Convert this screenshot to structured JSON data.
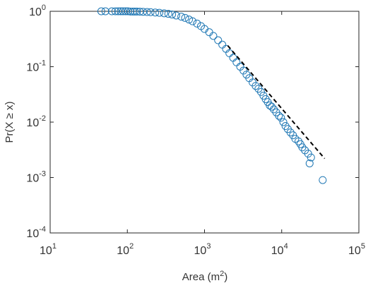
{
  "chart_data": {
    "type": "scatter",
    "xlabel": "Area (m",
    "xlabel_sup": "2",
    "xlabel_end": ")",
    "ylabel": "Pr(X ≥ x)",
    "xscale": "log",
    "yscale": "log",
    "xlim": [
      10,
      100000
    ],
    "ylim": [
      0.0001,
      1
    ],
    "grid": false,
    "x_ticks": [
      {
        "base": "10",
        "exp": "1",
        "value": 10
      },
      {
        "base": "10",
        "exp": "2",
        "value": 100
      },
      {
        "base": "10",
        "exp": "3",
        "value": 1000
      },
      {
        "base": "10",
        "exp": "4",
        "value": 10000
      },
      {
        "base": "10",
        "exp": "5",
        "value": 100000
      }
    ],
    "y_ticks": [
      {
        "base": "10",
        "exp": "0",
        "value": 1
      },
      {
        "base": "10",
        "exp": "-1",
        "value": 0.1
      },
      {
        "base": "10",
        "exp": "-2",
        "value": 0.01
      },
      {
        "base": "10",
        "exp": "-3",
        "value": 0.001
      },
      {
        "base": "10",
        "exp": "-4",
        "value": 0.0001
      }
    ],
    "colors": {
      "marker": "#1f77b4",
      "fit_line": "#000000",
      "axis": "#262626"
    },
    "series": [
      {
        "type": "scatter",
        "marker": "open-circle",
        "points": [
          [
            46,
            1.0
          ],
          [
            52,
            1.0
          ],
          [
            63,
            1.0
          ],
          [
            70,
            1.0
          ],
          [
            76,
            1.0
          ],
          [
            82,
            1.0
          ],
          [
            88,
            1.0
          ],
          [
            95,
            1.0
          ],
          [
            102,
            1.0
          ],
          [
            110,
            0.99
          ],
          [
            118,
            0.99
          ],
          [
            125,
            0.99
          ],
          [
            133,
            0.99
          ],
          [
            145,
            0.985
          ],
          [
            160,
            0.98
          ],
          [
            180,
            0.97
          ],
          [
            200,
            0.965
          ],
          [
            230,
            0.95
          ],
          [
            260,
            0.94
          ],
          [
            300,
            0.92
          ],
          [
            340,
            0.9
          ],
          [
            380,
            0.875
          ],
          [
            430,
            0.84
          ],
          [
            500,
            0.8
          ],
          [
            560,
            0.76
          ],
          [
            630,
            0.71
          ],
          [
            700,
            0.66
          ],
          [
            800,
            0.6
          ],
          [
            900,
            0.54
          ],
          [
            1000,
            0.48
          ],
          [
            1150,
            0.42
          ],
          [
            1300,
            0.36
          ],
          [
            1500,
            0.3
          ],
          [
            1700,
            0.25
          ],
          [
            1900,
            0.21
          ],
          [
            2100,
            0.175
          ],
          [
            2350,
            0.145
          ],
          [
            2600,
            0.12
          ],
          [
            2900,
            0.1
          ],
          [
            3200,
            0.085
          ],
          [
            3500,
            0.072
          ],
          [
            3800,
            0.062
          ],
          [
            4200,
            0.052
          ],
          [
            4600,
            0.045
          ],
          [
            5000,
            0.04
          ],
          [
            5400,
            0.035
          ],
          [
            5800,
            0.03
          ],
          [
            6200,
            0.026
          ],
          [
            6600,
            0.023
          ],
          [
            7000,
            0.02
          ],
          [
            7400,
            0.019
          ],
          [
            7900,
            0.017
          ],
          [
            8500,
            0.015
          ],
          [
            9200,
            0.013
          ],
          [
            9800,
            0.012
          ],
          [
            10500,
            0.01
          ],
          [
            11200,
            0.0085
          ],
          [
            12000,
            0.0075
          ],
          [
            13000,
            0.0065
          ],
          [
            14000,
            0.0058
          ],
          [
            15000,
            0.005
          ],
          [
            16500,
            0.0045
          ],
          [
            17500,
            0.004
          ],
          [
            18500,
            0.0035
          ],
          [
            20000,
            0.0031
          ],
          [
            22000,
            0.0027
          ],
          [
            24000,
            0.0023
          ],
          [
            23000,
            0.0018
          ],
          [
            34000,
            0.0009
          ]
        ]
      },
      {
        "type": "line",
        "style": "dashed",
        "points": [
          [
            2000,
            0.24
          ],
          [
            36000,
            0.0022
          ]
        ]
      }
    ]
  }
}
